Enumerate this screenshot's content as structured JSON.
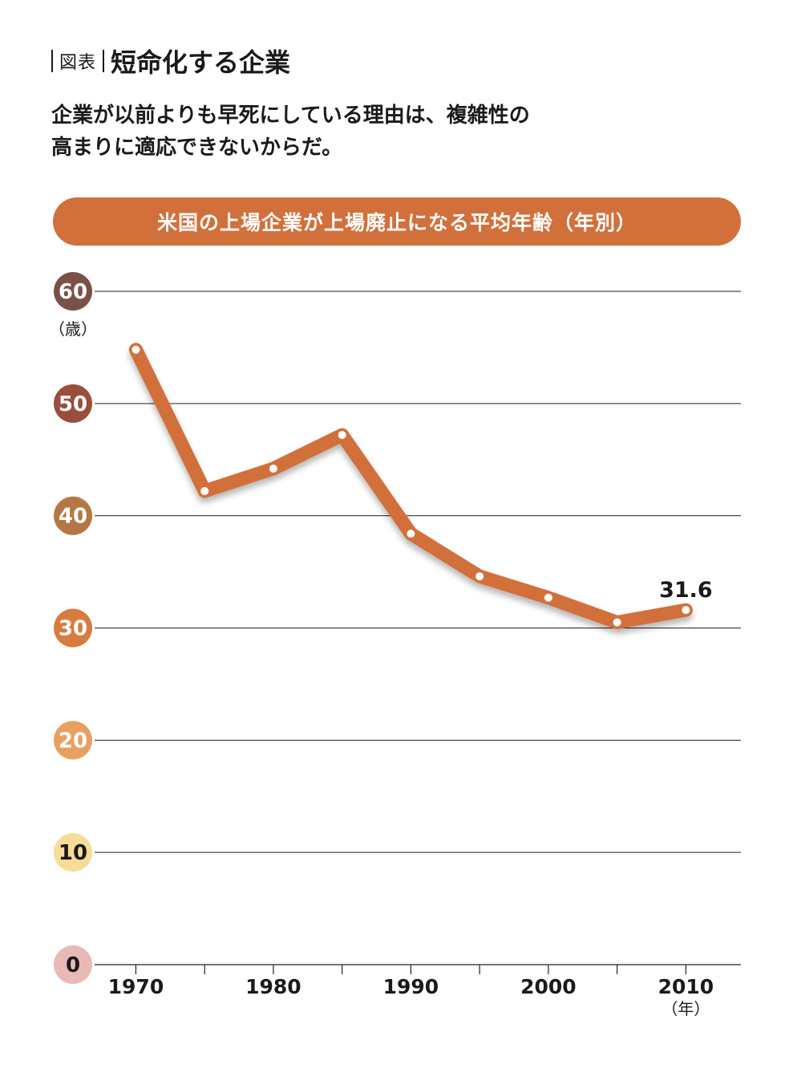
{
  "header": {
    "figure_label": "図表",
    "title": "短命化する企業"
  },
  "subtitle_lines": [
    "企業が以前よりも早死にしている理由は、複雑性の",
    "高まりに適応できないからだ。"
  ],
  "chart_data": {
    "type": "line",
    "title": "米国の上場企業が上場廃止になる平均年齢（年別）",
    "ylabel": "（歳）",
    "xlabel": "（年）",
    "ylim": [
      0,
      60
    ],
    "xlim": [
      1967,
      2014
    ],
    "y_ticks": [
      0,
      10,
      20,
      30,
      40,
      50,
      60
    ],
    "x_tick_labels": [
      1970,
      1980,
      1990,
      2000,
      2010
    ],
    "x_minor_ticks": [
      1970,
      1975,
      1980,
      1985,
      1990,
      1995,
      2000,
      2005,
      2010
    ],
    "y_tick_colors": [
      "#e9b9b6",
      "#f6dc98",
      "#e8a062",
      "#d77c3e",
      "#b57844",
      "#9a4e3c",
      "#7a5148"
    ],
    "line_color": "#d2703b",
    "grid": true,
    "series": [
      {
        "x": [
          1970,
          1975,
          1980,
          1985,
          1990,
          1995,
          2000,
          2005,
          2010
        ],
        "values": [
          54.8,
          42.2,
          44.2,
          47.2,
          38.4,
          34.6,
          32.7,
          30.5,
          31.6
        ]
      }
    ],
    "annotation": {
      "text": "31.6",
      "x": 2010,
      "y": 31.6
    }
  }
}
